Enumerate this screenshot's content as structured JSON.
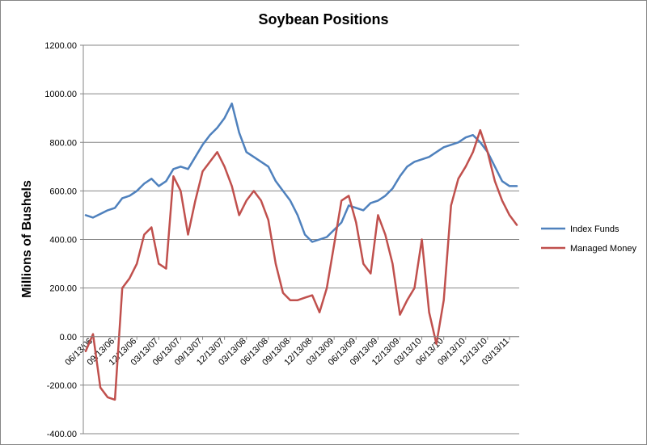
{
  "chart_data": {
    "type": "line",
    "title": "Soybean Positions",
    "ylabel": "Millions of Bushels",
    "xlabel": "",
    "ylim": [
      -400,
      1200
    ],
    "y_ticks": [
      "1200.00",
      "1000.00",
      "800.00",
      "600.00",
      "400.00",
      "200.00",
      "0.00",
      "-200.00",
      "-400.00"
    ],
    "y_tick_values": [
      1200,
      1000,
      800,
      600,
      400,
      200,
      0,
      -200,
      -400
    ],
    "grid": "horizontal",
    "legend_position": "right",
    "x_tick_labels": [
      "06/13/06",
      "09/13/06",
      "12/13/06",
      "03/13/07",
      "06/13/07",
      "09/13/07",
      "12/13/07",
      "03/13/08",
      "06/13/08",
      "09/13/08",
      "12/13/08",
      "03/13/09",
      "06/13/09",
      "09/13/09",
      "12/13/09",
      "03/13/10",
      "06/13/10",
      "09/13/10",
      "12/13/10",
      "03/13/11"
    ],
    "x": [
      "06/13/06",
      "07/13/06",
      "08/13/06",
      "09/13/06",
      "10/13/06",
      "11/13/06",
      "12/13/06",
      "01/13/07",
      "02/13/07",
      "03/13/07",
      "04/13/07",
      "05/13/07",
      "06/13/07",
      "07/13/07",
      "08/13/07",
      "09/13/07",
      "10/13/07",
      "11/13/07",
      "12/13/07",
      "01/13/08",
      "02/13/08",
      "03/13/08",
      "04/13/08",
      "05/13/08",
      "06/13/08",
      "07/13/08",
      "08/13/08",
      "09/13/08",
      "10/13/08",
      "11/13/08",
      "12/13/08",
      "01/13/09",
      "02/13/09",
      "03/13/09",
      "04/13/09",
      "05/13/09",
      "06/13/09",
      "07/13/09",
      "08/13/09",
      "09/13/09",
      "10/13/09",
      "11/13/09",
      "12/13/09",
      "01/13/10",
      "02/13/10",
      "03/13/10",
      "04/13/10",
      "05/13/10",
      "06/13/10",
      "07/13/10",
      "08/13/10",
      "09/13/10",
      "10/13/10",
      "11/13/10",
      "12/13/10",
      "01/13/11",
      "02/13/11",
      "03/13/11",
      "04/13/11",
      "05/13/11"
    ],
    "series": [
      {
        "name": "Index Funds",
        "color": "#4f81bd",
        "values": [
          500,
          490,
          505,
          520,
          530,
          570,
          580,
          600,
          630,
          650,
          620,
          640,
          690,
          700,
          690,
          740,
          790,
          830,
          860,
          900,
          960,
          840,
          760,
          740,
          720,
          700,
          640,
          600,
          560,
          500,
          420,
          390,
          400,
          410,
          440,
          470,
          540,
          530,
          520,
          550,
          560,
          580,
          610,
          660,
          700,
          720,
          730,
          740,
          760,
          780,
          790,
          800,
          820,
          830,
          800,
          760,
          700,
          640,
          620,
          620
        ]
      },
      {
        "name": "Managed Money",
        "color": "#c0504d",
        "values": [
          -60,
          10,
          -210,
          -250,
          -260,
          200,
          240,
          300,
          420,
          450,
          300,
          280,
          660,
          600,
          420,
          560,
          680,
          720,
          760,
          700,
          620,
          500,
          560,
          600,
          560,
          480,
          300,
          180,
          150,
          150,
          160,
          170,
          100,
          200,
          380,
          560,
          580,
          470,
          300,
          260,
          500,
          420,
          300,
          90,
          150,
          200,
          400,
          100,
          -30,
          150,
          540,
          650,
          700,
          760,
          850,
          760,
          640,
          560,
          500,
          460
        ]
      }
    ]
  }
}
